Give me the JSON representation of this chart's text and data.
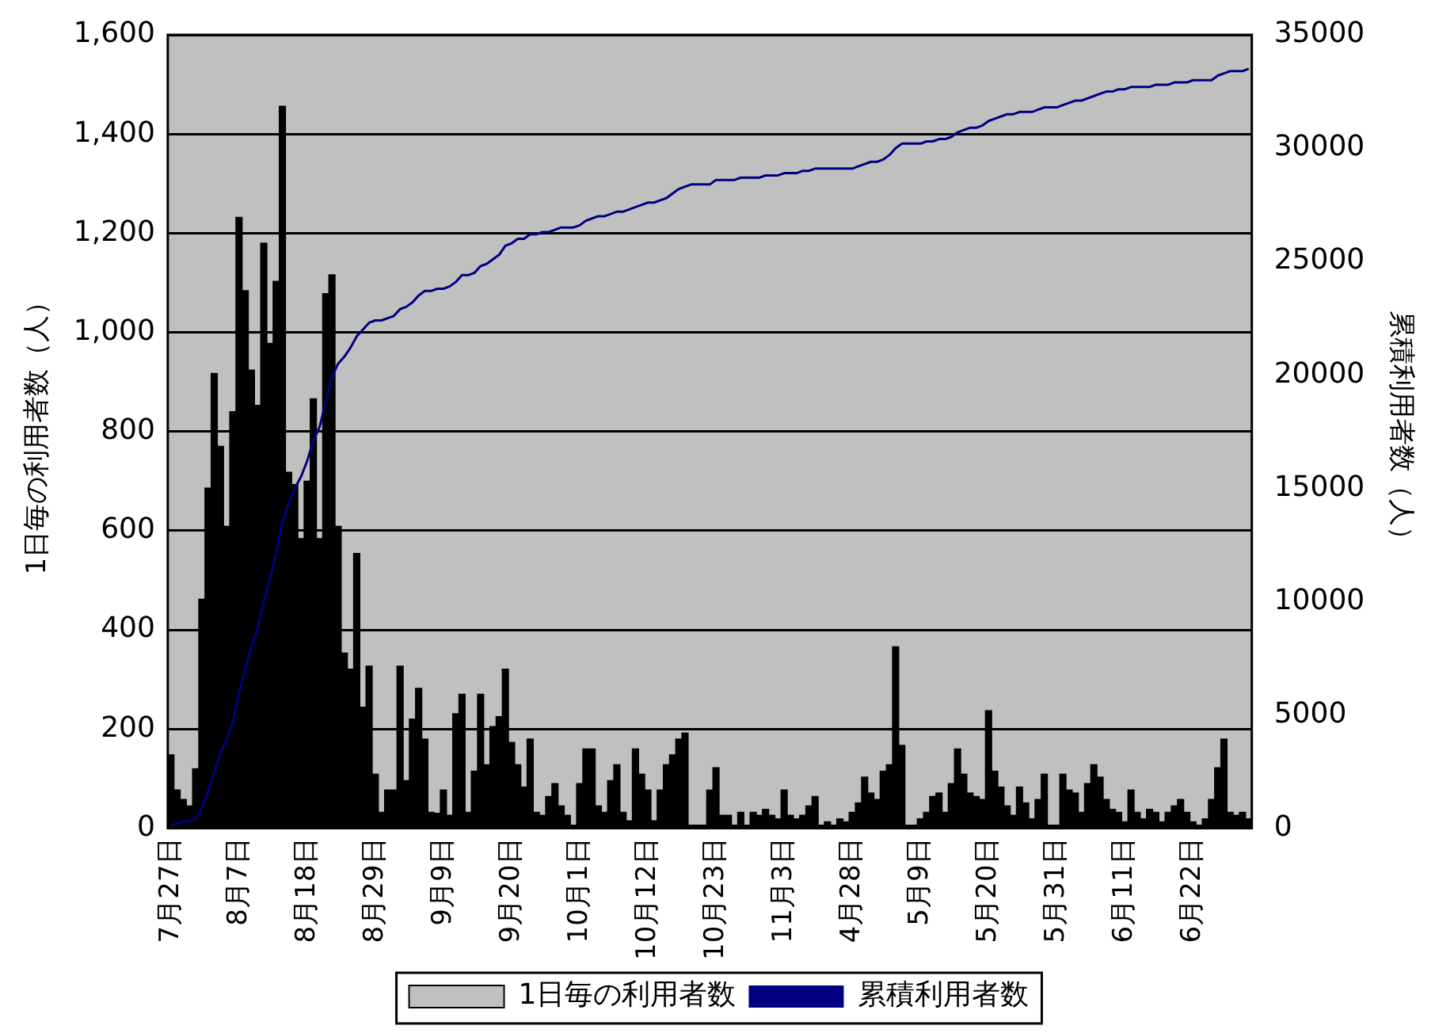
{
  "chart_data": {
    "type": "bar",
    "ylabel": "1日毎の利用者数（人）",
    "y2label": "累積利用者数（人）",
    "categories": [
      "7月27日",
      null,
      null,
      null,
      null,
      null,
      null,
      null,
      null,
      null,
      null,
      "8月7日",
      null,
      null,
      null,
      null,
      null,
      null,
      null,
      null,
      null,
      null,
      "8月18日",
      null,
      null,
      null,
      null,
      null,
      null,
      null,
      null,
      null,
      null,
      "8月29日",
      null,
      null,
      null,
      null,
      null,
      null,
      null,
      null,
      null,
      null,
      "9月9日",
      null,
      null,
      null,
      null,
      null,
      null,
      null,
      null,
      null,
      null,
      "9月20日",
      null,
      null,
      null,
      null,
      null,
      null,
      null,
      null,
      null,
      null,
      "10月1日",
      null,
      null,
      null,
      null,
      null,
      null,
      null,
      null,
      null,
      null,
      "10月12日",
      null,
      null,
      null,
      null,
      null,
      null,
      null,
      null,
      null,
      null,
      "10月23日",
      null,
      null,
      null,
      null,
      null,
      null,
      null,
      null,
      null,
      null,
      "11月3日",
      null,
      null,
      null,
      null,
      null,
      null,
      null,
      null,
      null,
      null,
      "4月28日",
      null,
      null,
      null,
      null,
      null,
      null,
      null,
      null,
      null,
      null,
      "5月9日",
      null,
      null,
      null,
      null,
      null,
      null,
      null,
      null,
      null,
      null,
      "5月20日",
      null,
      null,
      null,
      null,
      null,
      null,
      null,
      null,
      null,
      null,
      "5月31日",
      null,
      null,
      null,
      null,
      null,
      null,
      null,
      null,
      null,
      null,
      "6月11日",
      null,
      null,
      null,
      null,
      null,
      null,
      null,
      null,
      null,
      null,
      "6月22日",
      null,
      null,
      null,
      null,
      null,
      null,
      null,
      null,
      null
    ],
    "series": [
      {
        "name": "1日毎の利用者数",
        "color": "#000000",
        "values": [
          148,
          77,
          58,
          45,
          120,
          462,
          686,
          917,
          770,
          609,
          840,
          1232,
          1084,
          924,
          853,
          1180,
          978,
          1103,
          1456,
          718,
          693,
          584,
          700,
          866,
          584,
          1078,
          1116,
          609,
          353,
          321,
          554,
          244,
          327,
          109,
          32,
          77,
          77,
          327,
          96,
          220,
          282,
          180,
          32,
          30,
          77,
          26,
          231,
          270,
          32,
          115,
          270,
          128,
          205,
          225,
          321,
          173,
          128,
          83,
          180,
          32,
          26,
          64,
          90,
          45,
          26,
          6,
          90,
          160,
          160,
          45,
          32,
          96,
          128,
          32,
          15,
          160,
          109,
          77,
          15,
          77,
          128,
          148,
          180,
          192,
          6,
          6,
          6,
          77,
          122,
          26,
          26,
          6,
          32,
          6,
          32,
          26,
          38,
          26,
          19,
          77,
          26,
          19,
          26,
          45,
          64,
          6,
          13,
          6,
          19,
          13,
          32,
          51,
          103,
          71,
          58,
          115,
          128,
          366,
          167,
          6,
          6,
          19,
          32,
          64,
          71,
          32,
          90,
          160,
          109,
          71,
          64,
          58,
          237,
          115,
          83,
          45,
          26,
          83,
          51,
          19,
          58,
          109,
          6,
          6,
          109,
          77,
          71,
          32,
          90,
          128,
          103,
          58,
          38,
          32,
          13,
          77,
          32,
          19,
          38,
          32,
          13,
          32,
          45,
          58,
          32,
          13,
          6,
          19,
          58,
          122,
          180,
          32,
          26,
          32,
          19
        ]
      },
      {
        "name": "累積利用者数",
        "type": "line",
        "axis": "y2",
        "color": "#000080",
        "values": [
          100,
          200,
          300,
          300,
          400,
          900,
          1600,
          2500,
          3300,
          3900,
          4700,
          6000,
          7000,
          8000,
          8800,
          10000,
          11000,
          12100,
          13500,
          14300,
          15000,
          15500,
          16200,
          17100,
          17700,
          18800,
          19900,
          20500,
          20800,
          21200,
          21700,
          22000,
          22300,
          22400,
          22400,
          22500,
          22600,
          22900,
          23000,
          23200,
          23500,
          23700,
          23700,
          23800,
          23800,
          23900,
          24100,
          24400,
          24400,
          24500,
          24800,
          24900,
          25100,
          25300,
          25700,
          25800,
          26000,
          26000,
          26200,
          26200,
          26300,
          26300,
          26400,
          26500,
          26500,
          26500,
          26600,
          26800,
          26900,
          27000,
          27000,
          27100,
          27200,
          27200,
          27300,
          27400,
          27500,
          27600,
          27600,
          27700,
          27800,
          28000,
          28200,
          28300,
          28400,
          28400,
          28400,
          28400,
          28600,
          28600,
          28600,
          28600,
          28700,
          28700,
          28700,
          28700,
          28800,
          28800,
          28800,
          28900,
          28900,
          28900,
          29000,
          29000,
          29100,
          29100,
          29100,
          29100,
          29100,
          29100,
          29100,
          29200,
          29300,
          29400,
          29400,
          29500,
          29700,
          30000,
          30200,
          30200,
          30200,
          30200,
          30300,
          30300,
          30400,
          30400,
          30500,
          30700,
          30800,
          30900,
          30900,
          31000,
          31200,
          31300,
          31400,
          31500,
          31500,
          31600,
          31600,
          31600,
          31700,
          31800,
          31800,
          31800,
          31900,
          32000,
          32100,
          32100,
          32200,
          32300,
          32400,
          32500,
          32500,
          32600,
          32600,
          32700,
          32700,
          32700,
          32700,
          32800,
          32800,
          32800,
          32900,
          32900,
          32900,
          33000,
          33000,
          33000,
          33000,
          33200,
          33300,
          33400,
          33400,
          33400,
          33500
        ]
      }
    ],
    "ylim": [
      0,
      1600
    ],
    "yticks": [
      0,
      200,
      400,
      600,
      800,
      {
        "value": 1000,
        "label": "1,000"
      },
      {
        "value": 1200,
        "label": "1,200"
      },
      {
        "value": 1400,
        "label": "1,400"
      },
      {
        "value": 1600,
        "label": "1,600"
      }
    ],
    "y2lim": [
      0,
      35000
    ],
    "y2ticks": [
      0,
      5000,
      10000,
      15000,
      20000,
      25000,
      30000,
      35000
    ],
    "grid": "y",
    "legend": "bottom"
  }
}
